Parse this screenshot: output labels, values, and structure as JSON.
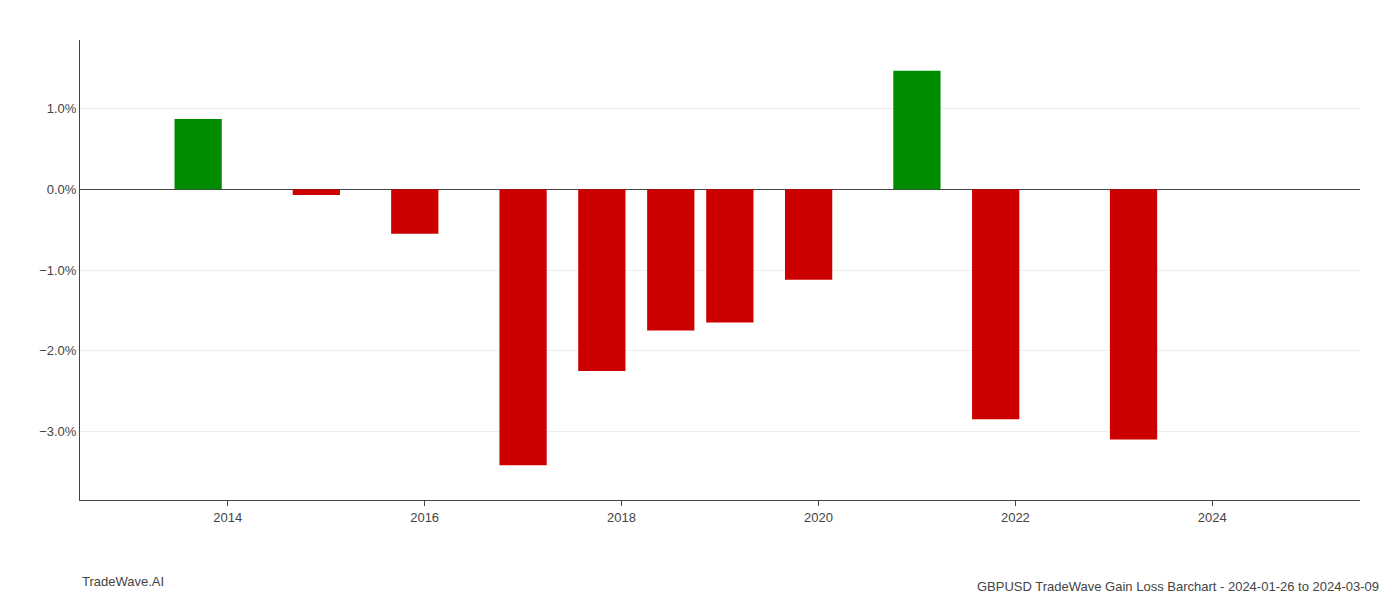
{
  "chart_data": {
    "type": "bar",
    "title": "GBPUSD TradeWave Gain Loss Barchart - 2024-01-26 to 2024-03-09",
    "annotations": [
      "TradeWave.AI"
    ],
    "x": [
      2013.7,
      2014.9,
      2015.9,
      2017.0,
      2017.8,
      2018.5,
      2019.1,
      2019.9,
      2021.0,
      2021.8,
      2023.2
    ],
    "values": [
      0.87,
      -0.07,
      -0.55,
      -3.42,
      -2.25,
      -1.75,
      -1.65,
      -1.12,
      1.47,
      -2.85,
      -3.1
    ],
    "colors": [
      "#008c00",
      "#cc0000",
      "#cc0000",
      "#cc0000",
      "#cc0000",
      "#cc0000",
      "#cc0000",
      "#cc0000",
      "#008c00",
      "#cc0000",
      "#cc0000"
    ],
    "xlim": [
      2012.5,
      2025.5
    ],
    "xticks": [
      2014,
      2016,
      2018,
      2020,
      2022,
      2024
    ],
    "ylim": [
      -3.85,
      1.85
    ],
    "yticks": [
      {
        "value": 1.0,
        "label": "1.0%"
      },
      {
        "value": 0.0,
        "label": "0.0%"
      },
      {
        "value": -1.0,
        "label": "−1.0%"
      },
      {
        "value": -2.0,
        "label": "−2.0%"
      },
      {
        "value": -3.0,
        "label": "−3.0%"
      }
    ],
    "grid": true
  }
}
